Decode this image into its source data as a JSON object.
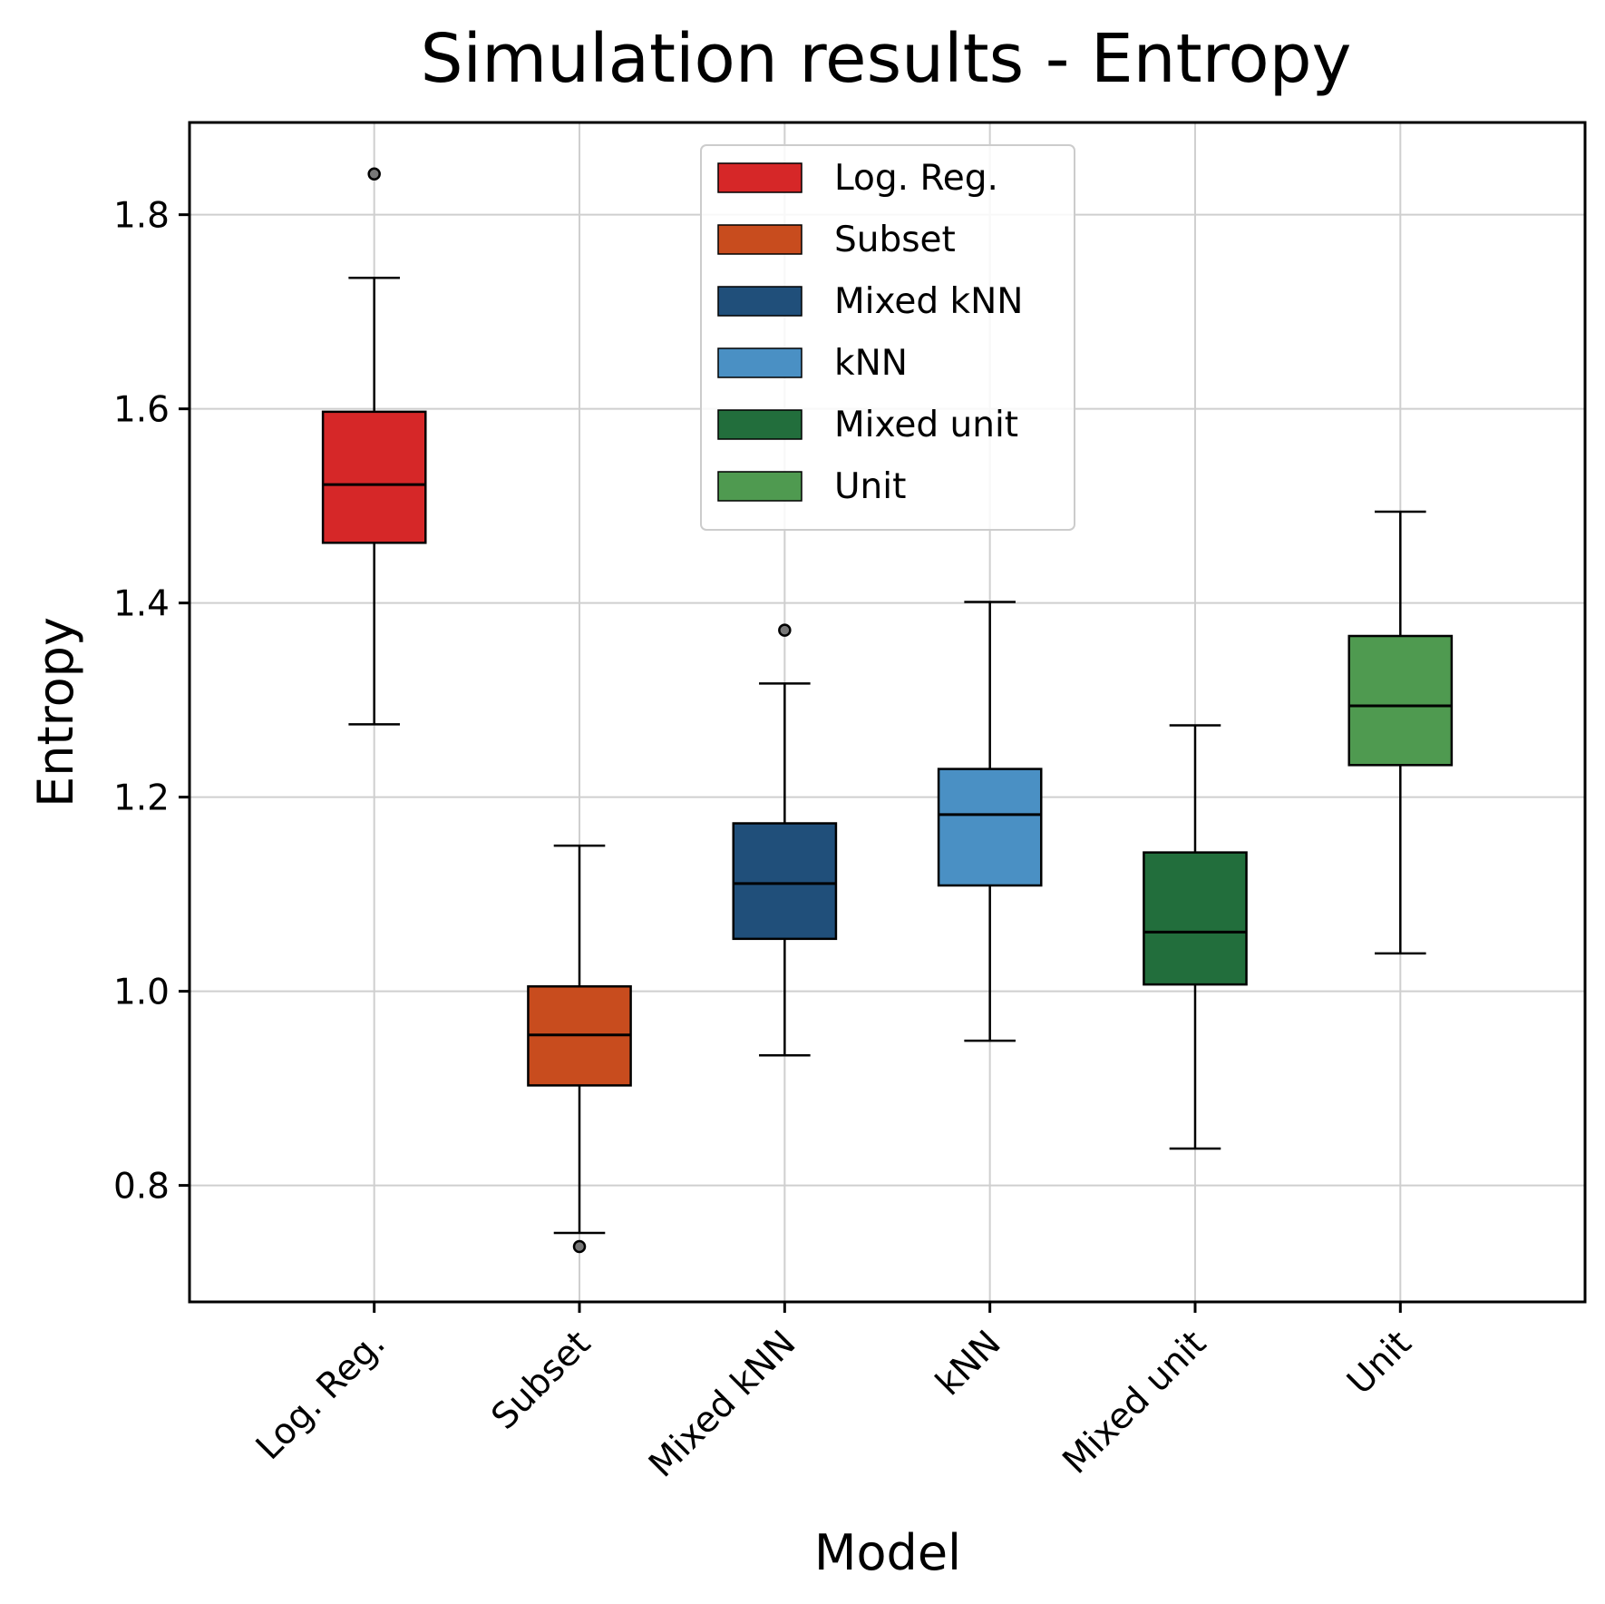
{
  "chart_data": {
    "type": "box",
    "title": "Simulation results - Entropy",
    "xlabel": "Model",
    "ylabel": "Entropy",
    "ylim": [
      0.68,
      1.895
    ],
    "yticks": [
      0.8,
      1.0,
      1.2,
      1.4,
      1.6,
      1.8
    ],
    "ytick_labels": [
      "0.8",
      "1.0",
      "1.2",
      "1.4",
      "1.6",
      "1.8"
    ],
    "grid": true,
    "legend_position": "top-center",
    "categories": [
      "Log. Reg.",
      "Subset",
      "Mixed kNN",
      "kNN",
      "Mixed unit",
      "Unit"
    ],
    "series": [
      {
        "name": "Log. Reg.",
        "color": "#d62728",
        "whisker_low": 1.275,
        "q1": 1.462,
        "median": 1.522,
        "q3": 1.597,
        "whisker_high": 1.735,
        "outliers": [
          1.842
        ]
      },
      {
        "name": "Subset",
        "color": "#c84c1e",
        "whisker_low": 0.751,
        "q1": 0.903,
        "median": 0.955,
        "q3": 1.005,
        "whisker_high": 1.15,
        "outliers": [
          0.737
        ]
      },
      {
        "name": "Mixed kNN",
        "color": "#204f7a",
        "whisker_low": 0.934,
        "q1": 1.054,
        "median": 1.111,
        "q3": 1.173,
        "whisker_high": 1.317,
        "outliers": [
          1.372
        ]
      },
      {
        "name": "kNN",
        "color": "#4a90c4",
        "whisker_low": 0.949,
        "q1": 1.109,
        "median": 1.182,
        "q3": 1.229,
        "whisker_high": 1.401,
        "outliers": []
      },
      {
        "name": "Mixed unit",
        "color": "#226e3c",
        "whisker_low": 0.838,
        "q1": 1.007,
        "median": 1.061,
        "q3": 1.143,
        "whisker_high": 1.274,
        "outliers": []
      },
      {
        "name": "Unit",
        "color": "#4f9a50",
        "whisker_low": 1.039,
        "q1": 1.233,
        "median": 1.294,
        "q3": 1.366,
        "whisker_high": 1.494,
        "outliers": []
      }
    ],
    "legend": [
      "Log. Reg.",
      "Subset",
      "Mixed kNN",
      "kNN",
      "Mixed unit",
      "Unit"
    ]
  }
}
